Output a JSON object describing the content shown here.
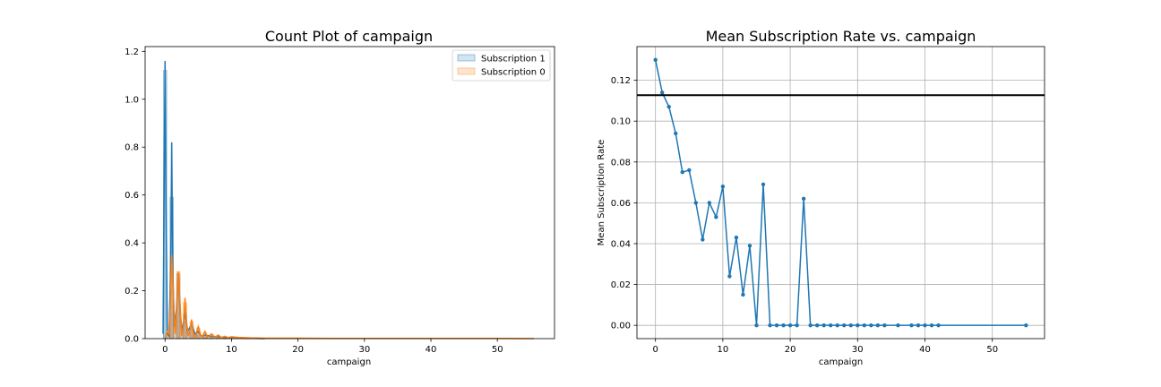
{
  "chart_data": [
    {
      "type": "area",
      "title": "Count Plot of campaign",
      "xlabel": "campaign",
      "ylabel": "",
      "xlim": [
        -3.0,
        58.6
      ],
      "ylim": [
        0,
        1.22
      ],
      "xticks": [
        0,
        10,
        20,
        30,
        40,
        50
      ],
      "yticks": [
        0.0,
        0.2,
        0.4,
        0.6,
        0.8,
        1.0,
        1.2
      ],
      "grid": false,
      "legend_position": "top-right",
      "colors": {
        "Subscription 1": "#1f77b4",
        "Subscription 0": "#ff7f0e"
      },
      "series": [
        {
          "name": "Subscription 1",
          "x": [
            -0.3,
            0.0,
            0.15,
            0.35,
            0.6,
            0.85,
            1.0,
            1.15,
            1.4,
            1.7,
            2.0,
            2.3,
            2.6,
            3.0,
            3.4,
            4.0,
            4.5,
            5.0,
            5.5,
            6.0,
            7.0,
            8.0,
            9.0,
            10.0,
            12.0,
            15.0
          ],
          "y": [
            0.02,
            1.16,
            0.55,
            0.02,
            0.01,
            0.3,
            0.82,
            0.3,
            0.05,
            0.12,
            0.27,
            0.1,
            0.03,
            0.11,
            0.03,
            0.06,
            0.02,
            0.03,
            0.01,
            0.015,
            0.01,
            0.008,
            0.004,
            0.006,
            0.002,
            0.0
          ]
        },
        {
          "name": "Subscription 0",
          "x": [
            0.0,
            0.3,
            0.6,
            0.8,
            1.0,
            1.2,
            1.5,
            1.8,
            2.0,
            2.2,
            2.5,
            2.8,
            3.0,
            3.2,
            3.5,
            3.8,
            4.0,
            4.2,
            4.5,
            5.0,
            5.3,
            5.6,
            6.0,
            6.4,
            7.0,
            7.5,
            8.0,
            8.5,
            9.0,
            9.5,
            10.0,
            11.0,
            12.0,
            13.0,
            14.0,
            15.0,
            17.0,
            20.0,
            25.0,
            30.0,
            35.0,
            40.0,
            45.0,
            50.0,
            55.5
          ],
          "y": [
            0.0,
            0.03,
            0.02,
            0.15,
            0.35,
            0.22,
            0.02,
            0.15,
            0.28,
            0.18,
            0.01,
            0.06,
            0.17,
            0.08,
            0.01,
            0.04,
            0.08,
            0.03,
            0.005,
            0.05,
            0.02,
            0.005,
            0.03,
            0.005,
            0.02,
            0.005,
            0.015,
            0.004,
            0.01,
            0.003,
            0.008,
            0.005,
            0.004,
            0.003,
            0.003,
            0.002,
            0.002,
            0.002,
            0.001,
            0.001,
            0.001,
            0.001,
            0.001,
            0.001,
            0.0
          ]
        }
      ],
      "histograms": [
        {
          "name": "Subscription 1",
          "bins": [
            [
              -0.25,
              0.25,
              1.12
            ],
            [
              0.75,
              1.25,
              0.59
            ],
            [
              1.75,
              2.25,
              0.27
            ],
            [
              2.75,
              3.25,
              0.1
            ],
            [
              3.75,
              4.25,
              0.05
            ],
            [
              4.75,
              5.25,
              0.03
            ],
            [
              5.75,
              6.25,
              0.015
            ],
            [
              6.75,
              7.25,
              0.01
            ],
            [
              7.75,
              8.25,
              0.008
            ],
            [
              8.75,
              9.25,
              0.004
            ],
            [
              9.75,
              10.25,
              0.006
            ]
          ]
        },
        {
          "name": "Subscription 0",
          "bins": [
            [
              0.75,
              1.25,
              0.3
            ],
            [
              1.75,
              2.25,
              0.28
            ],
            [
              2.75,
              3.25,
              0.15
            ],
            [
              3.75,
              4.25,
              0.07
            ],
            [
              4.75,
              5.25,
              0.045
            ],
            [
              5.75,
              6.25,
              0.025
            ],
            [
              6.75,
              7.25,
              0.018
            ],
            [
              7.75,
              8.25,
              0.012
            ],
            [
              8.75,
              9.25,
              0.009
            ],
            [
              9.75,
              10.25,
              0.007
            ]
          ]
        }
      ]
    },
    {
      "type": "line",
      "title": "Mean Subscription Rate vs. campaign",
      "xlabel": "campaign",
      "ylabel": "Mean Subscription Rate",
      "xlim": [
        -2.75,
        57.75
      ],
      "ylim": [
        -0.0065,
        0.1365
      ],
      "xticks": [
        0,
        10,
        20,
        30,
        40,
        50
      ],
      "yticks": [
        0.0,
        0.02,
        0.04,
        0.06,
        0.08,
        0.1,
        0.12
      ],
      "grid": true,
      "hline": 0.1127,
      "colors": {
        "line": "#1f77b4",
        "hline": "#000000"
      },
      "series": [
        {
          "x": [
            0,
            1,
            2,
            3,
            4,
            5,
            6,
            7,
            8,
            9,
            10,
            11,
            12,
            13,
            14,
            15,
            16,
            17,
            18,
            19,
            20,
            21,
            22,
            23,
            24,
            25,
            26,
            27,
            28,
            29,
            30,
            31,
            32,
            33,
            34,
            36,
            38,
            39,
            40,
            41,
            42,
            55
          ],
          "y": [
            0.13,
            0.114,
            0.107,
            0.094,
            0.075,
            0.076,
            0.06,
            0.042,
            0.06,
            0.053,
            0.068,
            0.024,
            0.043,
            0.015,
            0.039,
            0.0,
            0.069,
            0.0,
            0.0,
            0.0,
            0.0,
            0.0,
            0.062,
            0.0,
            0.0,
            0.0,
            0.0,
            0.0,
            0.0,
            0.0,
            0.0,
            0.0,
            0.0,
            0.0,
            0.0,
            0.0,
            0.0,
            0.0,
            0.0,
            0.0,
            0.0,
            0.0
          ]
        }
      ]
    }
  ],
  "legend": {
    "sub1_label": "Subscription 1",
    "sub0_label": "Subscription 0"
  }
}
